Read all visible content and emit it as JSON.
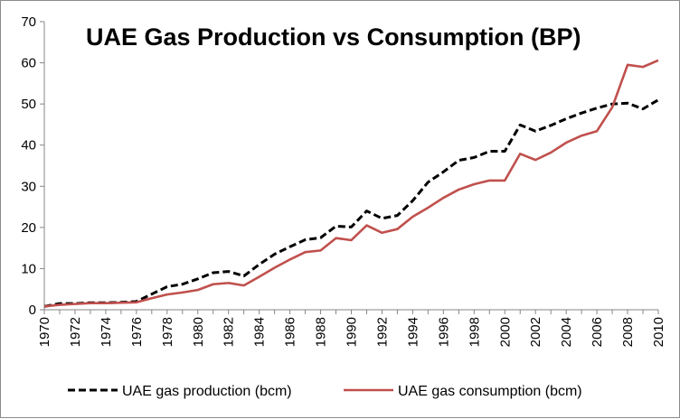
{
  "chart_data": {
    "type": "line",
    "title": "UAE Gas Production vs Consumption (BP)",
    "xlabel": "",
    "ylabel": "",
    "ylim": [
      0,
      70
    ],
    "yticks": [
      0,
      10,
      20,
      30,
      40,
      50,
      60,
      70
    ],
    "xlim": [
      1970,
      2010
    ],
    "xticks": [
      1970,
      1972,
      1974,
      1976,
      1978,
      1980,
      1982,
      1984,
      1986,
      1988,
      1990,
      1992,
      1994,
      1996,
      1998,
      2000,
      2002,
      2004,
      2006,
      2008,
      2010
    ],
    "grid": false,
    "legend_position": "bottom",
    "x": [
      1970,
      1971,
      1972,
      1973,
      1974,
      1975,
      1976,
      1977,
      1978,
      1979,
      1980,
      1981,
      1982,
      1983,
      1984,
      1985,
      1986,
      1987,
      1988,
      1989,
      1990,
      1991,
      1992,
      1993,
      1994,
      1995,
      1996,
      1997,
      1998,
      1999,
      2000,
      2001,
      2002,
      2003,
      2004,
      2005,
      2006,
      2007,
      2008,
      2009,
      2010
    ],
    "series": [
      {
        "name": "UAE gas production (bcm)",
        "color": "#000000",
        "dash": true,
        "values": [
          0.8,
          1.5,
          1.5,
          1.7,
          1.7,
          1.8,
          2.0,
          3.8,
          5.6,
          6.2,
          7.5,
          9.0,
          9.3,
          8.2,
          11.0,
          13.5,
          15.3,
          17.0,
          17.5,
          20.3,
          20.1,
          24.0,
          22.2,
          22.9,
          26.5,
          31.0,
          33.5,
          36.3,
          37.0,
          38.5,
          38.5,
          44.9,
          43.4,
          44.8,
          46.4,
          47.8,
          49.0,
          50.0,
          50.2,
          48.8,
          51.0
        ]
      },
      {
        "name": "UAE gas consumption (bcm)",
        "color": "#c0504d",
        "dash": false,
        "values": [
          0.8,
          1.2,
          1.4,
          1.6,
          1.6,
          1.7,
          1.8,
          2.8,
          3.7,
          4.2,
          4.8,
          6.2,
          6.5,
          5.9,
          8.0,
          10.2,
          12.2,
          14.0,
          14.4,
          17.4,
          16.9,
          20.5,
          18.7,
          19.6,
          22.6,
          24.8,
          27.2,
          29.2,
          30.5,
          31.4,
          31.4,
          37.9,
          36.4,
          38.2,
          40.6,
          42.3,
          43.4,
          49.2,
          59.5,
          59.0,
          60.6
        ]
      }
    ]
  }
}
